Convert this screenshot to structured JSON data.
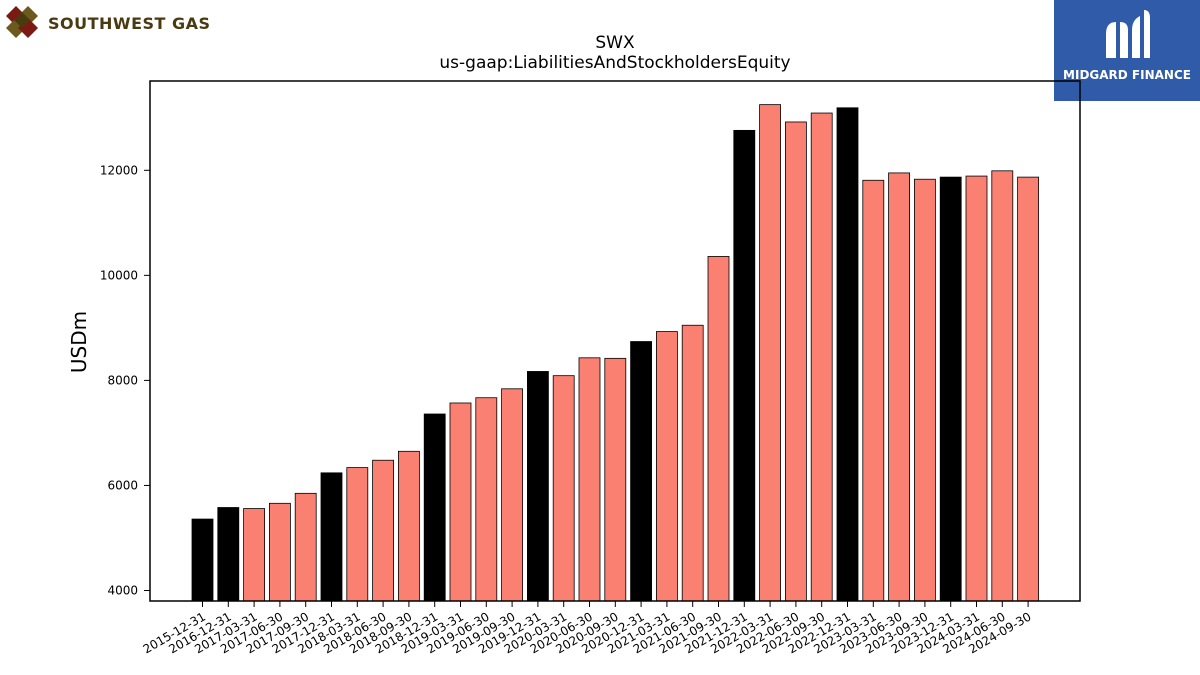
{
  "logos": {
    "left_text": "SOUTHWEST GAS",
    "right_text": "MIDGARD FINANCE"
  },
  "chart_data": {
    "type": "bar",
    "title": "SWX",
    "subtitle": "us-gaap:LiabilitiesAndStockholdersEquity",
    "xlabel": "",
    "ylabel": "USDm",
    "ylim": [
      3800,
      13700
    ],
    "yticks": [
      4000,
      6000,
      8000,
      10000,
      12000
    ],
    "colors": {
      "annual": "#000000",
      "quarterly": "#fa8072"
    },
    "categories": [
      "2015-12-31",
      "2016-12-31",
      "2017-03-31",
      "2017-06-30",
      "2017-09-30",
      "2017-12-31",
      "2018-03-31",
      "2018-06-30",
      "2018-09-30",
      "2018-12-31",
      "2019-03-31",
      "2019-06-30",
      "2019-09-30",
      "2019-12-31",
      "2020-03-31",
      "2020-06-30",
      "2020-09-30",
      "2020-12-31",
      "2021-03-31",
      "2021-06-30",
      "2021-09-30",
      "2021-12-31",
      "2022-03-31",
      "2022-06-30",
      "2022-09-30",
      "2022-12-31",
      "2023-03-31",
      "2023-06-30",
      "2023-09-30",
      "2023-12-31",
      "2024-03-31",
      "2024-06-30",
      "2024-09-30"
    ],
    "values": [
      5360,
      5580,
      5560,
      5660,
      5850,
      6240,
      6340,
      6480,
      6650,
      7360,
      7570,
      7670,
      7840,
      8170,
      8090,
      8430,
      8420,
      8740,
      8930,
      9050,
      10360,
      12760,
      13250,
      12920,
      13090,
      13190,
      11810,
      11950,
      11830,
      11870,
      11890,
      11990,
      11870
    ],
    "annual": [
      true,
      true,
      false,
      false,
      false,
      true,
      false,
      false,
      false,
      true,
      false,
      false,
      false,
      true,
      false,
      false,
      false,
      true,
      false,
      false,
      false,
      true,
      false,
      false,
      false,
      true,
      false,
      false,
      false,
      true,
      false,
      false,
      false
    ]
  }
}
